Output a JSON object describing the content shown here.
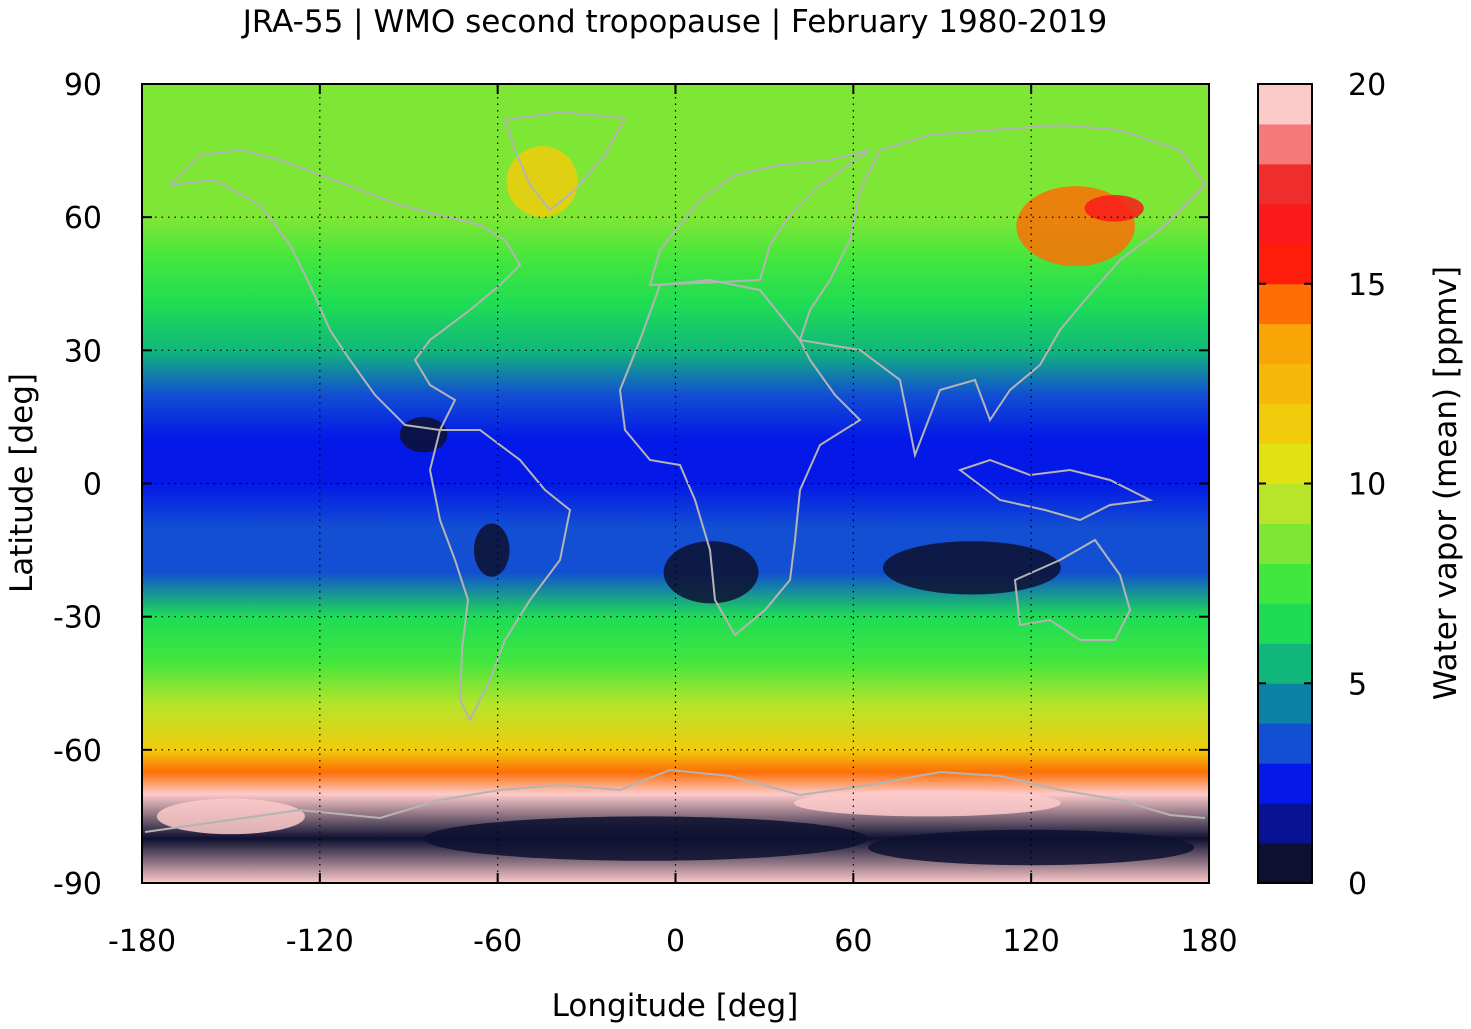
{
  "chart_data": {
    "type": "heatmap",
    "title": "JRA-55 | WMO second tropopause | February 1980-2019",
    "xlabel": "Longitude [deg]",
    "ylabel": "Latitude [deg]",
    "xlim": [
      -180,
      180
    ],
    "ylim": [
      -90,
      90
    ],
    "x_ticks": [
      "-180",
      "-120",
      "-60",
      "0",
      "60",
      "120",
      "180"
    ],
    "y_ticks": [
      "90",
      "60",
      "30",
      "0",
      "-30",
      "-60",
      "-90"
    ],
    "grid": true,
    "grid_style": "dotted",
    "colorbar": {
      "label": "Water vapor (mean) [ppmv]",
      "range": [
        0,
        20
      ],
      "ticks": [
        "0",
        "5",
        "10",
        "15",
        "20"
      ],
      "levels": [
        {
          "from": 0,
          "to": 1,
          "color": "#0d1030"
        },
        {
          "from": 1,
          "to": 2,
          "color": "#0a1294"
        },
        {
          "from": 2,
          "to": 3,
          "color": "#0418e8"
        },
        {
          "from": 3,
          "to": 4,
          "color": "#124fd2"
        },
        {
          "from": 4,
          "to": 5,
          "color": "#0c82a6"
        },
        {
          "from": 5,
          "to": 6,
          "color": "#11b77a"
        },
        {
          "from": 6,
          "to": 7,
          "color": "#1edc55"
        },
        {
          "from": 7,
          "to": 8,
          "color": "#41e63e"
        },
        {
          "from": 8,
          "to": 9,
          "color": "#7ee634"
        },
        {
          "from": 9,
          "to": 10,
          "color": "#b8e42a"
        },
        {
          "from": 10,
          "to": 11,
          "color": "#e0e212"
        },
        {
          "from": 11,
          "to": 12,
          "color": "#f0cc0d"
        },
        {
          "from": 12,
          "to": 13,
          "color": "#f6b80a"
        },
        {
          "from": 13,
          "to": 14,
          "color": "#faa507"
        },
        {
          "from": 14,
          "to": 15,
          "color": "#fd6f06"
        },
        {
          "from": 15,
          "to": 16,
          "color": "#ff1c0a"
        },
        {
          "from": 16,
          "to": 17,
          "color": "#fb1a1a"
        },
        {
          "from": 17,
          "to": 18,
          "color": "#ef2d2d"
        },
        {
          "from": 18,
          "to": 19,
          "color": "#f67979"
        },
        {
          "from": 19,
          "to": 20,
          "color": "#fdcaca"
        }
      ]
    },
    "zonal_mean_profile": {
      "latitude": [
        90,
        80,
        70,
        60,
        50,
        40,
        30,
        20,
        10,
        0,
        -10,
        -20,
        -30,
        -40,
        -50,
        -60,
        -65,
        -70,
        -80,
        -90
      ],
      "water_vapor_ppmv": [
        8.5,
        8.5,
        8.8,
        8.5,
        7.5,
        6.8,
        5.5,
        3.5,
        2.5,
        2.5,
        3.0,
        3.5,
        6.5,
        7.5,
        9.5,
        11.5,
        14.0,
        19.0,
        0.5,
        20.0
      ]
    }
  }
}
